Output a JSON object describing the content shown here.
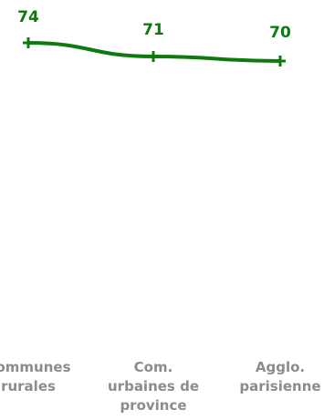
{
  "chart_data": {
    "type": "line",
    "categories": [
      "Communes\nrurales",
      "Com.\nurbaines de\nprovince",
      "Agglo.\nparisienne"
    ],
    "series": [
      {
        "values": [
          74,
          71,
          70
        ]
      }
    ],
    "data_labels": [
      "74",
      "71",
      "70"
    ],
    "title": "",
    "xlabel": "",
    "ylabel": "",
    "grid": false,
    "legend": "none",
    "colors": {
      "line": "#0c7a0c",
      "data_label": "#0c7a0c",
      "category_label": "#8c8c8c"
    }
  }
}
